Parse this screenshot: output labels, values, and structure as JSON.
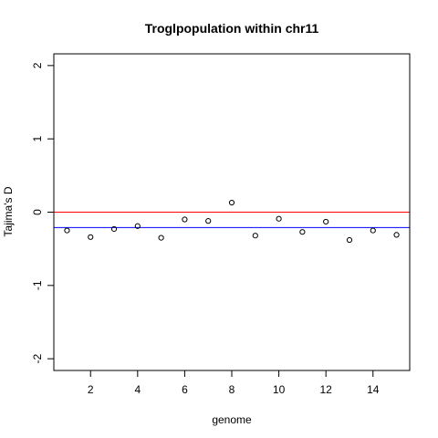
{
  "chart_data": {
    "type": "scatter",
    "title": "Troglpopulation within chr11",
    "xlabel": "genome",
    "ylabel": "Tajima's D",
    "xlim": [
      0.44,
      15.56
    ],
    "ylim": [
      -2.16,
      2.16
    ],
    "xticks": [
      2,
      4,
      6,
      8,
      10,
      12,
      14
    ],
    "yticks": [
      -2,
      -1,
      0,
      1,
      2
    ],
    "x": [
      1,
      2,
      3,
      4,
      5,
      6,
      7,
      8,
      9,
      10,
      11,
      12,
      13,
      14,
      15
    ],
    "y": [
      -0.25,
      -0.34,
      -0.23,
      -0.19,
      -0.35,
      -0.1,
      -0.12,
      0.13,
      -0.32,
      -0.09,
      -0.27,
      -0.13,
      -0.38,
      -0.25,
      -0.31
    ],
    "reference_lines": [
      {
        "y": 0,
        "color": "#ff0000"
      },
      {
        "y": -0.21,
        "color": "#0000ff"
      }
    ],
    "grid": false,
    "marker": "open-circle"
  }
}
